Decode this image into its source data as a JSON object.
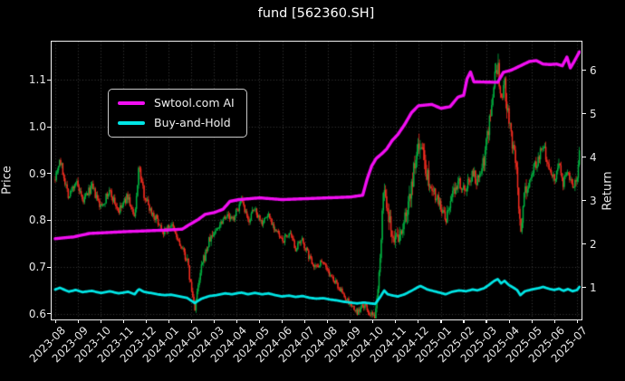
{
  "title": "fund [562360.SH]",
  "chart_data": {
    "type": "candlestick",
    "title": "fund [562360.SH]",
    "background_color": "#000000",
    "text_color": "#e8e8e8",
    "grid": {
      "show": true,
      "style": "dotted",
      "color": "#555555"
    },
    "x_axis": {
      "tick_unit": "month",
      "labels": [
        "2023-08",
        "2023-09",
        "2023-10",
        "2023-11",
        "2023-12",
        "2024-01",
        "2024-02",
        "2024-03",
        "2024-04",
        "2024-05",
        "2024-06",
        "2024-07",
        "2024-08",
        "2024-09",
        "2024-10",
        "2024-11",
        "2024-12",
        "2025-01",
        "2025-02",
        "2025-03",
        "2025-04",
        "2025-05",
        "2025-06",
        "2025-07"
      ]
    },
    "left_axis": {
      "label": "Price",
      "ticks": [
        1.1,
        1.0,
        0.9,
        0.8,
        0.7,
        0.6
      ],
      "tick_labels": [
        "1.1",
        "1.0",
        "0.9",
        "0.8",
        "0.7",
        "0.6"
      ],
      "range": [
        0.59,
        1.18
      ]
    },
    "right_axis": {
      "label": "Return",
      "ticks": [
        6,
        5,
        4,
        3,
        2,
        1
      ],
      "tick_labels": [
        "6",
        "5",
        "4",
        "3",
        "2",
        "1"
      ],
      "range": [
        0.28,
        6.68
      ]
    },
    "legend": {
      "position": "upper-left",
      "entries": [
        {
          "label": "Swtool.com AI",
          "color": "#f20ef2"
        },
        {
          "label": "Buy-and-Hold",
          "color": "#00e5e5"
        }
      ]
    },
    "series": [
      {
        "name": "Swtool.com AI",
        "type": "line",
        "axis": "right",
        "color": "#f20ef2",
        "x_unit": "months_from_2023-08",
        "points": [
          [
            0,
            2.12
          ],
          [
            0.8,
            2.16
          ],
          [
            1.5,
            2.24
          ],
          [
            3.0,
            2.28
          ],
          [
            4.0,
            2.3
          ],
          [
            5.0,
            2.32
          ],
          [
            5.6,
            2.34
          ],
          [
            5.9,
            2.44
          ],
          [
            6.3,
            2.56
          ],
          [
            6.6,
            2.68
          ],
          [
            7.0,
            2.72
          ],
          [
            7.4,
            2.8
          ],
          [
            7.7,
            2.98
          ],
          [
            8.1,
            3.02
          ],
          [
            9.0,
            3.06
          ],
          [
            10.0,
            3.02
          ],
          [
            11.0,
            3.04
          ],
          [
            12.0,
            3.06
          ],
          [
            13.0,
            3.08
          ],
          [
            13.55,
            3.12
          ],
          [
            13.75,
            3.5
          ],
          [
            13.95,
            3.8
          ],
          [
            14.15,
            3.97
          ],
          [
            14.4,
            4.08
          ],
          [
            14.6,
            4.18
          ],
          [
            14.85,
            4.38
          ],
          [
            15.1,
            4.52
          ],
          [
            15.4,
            4.75
          ],
          [
            15.7,
            5.02
          ],
          [
            16.0,
            5.18
          ],
          [
            16.6,
            5.21
          ],
          [
            17.0,
            5.12
          ],
          [
            17.4,
            5.16
          ],
          [
            17.75,
            5.38
          ],
          [
            18.0,
            5.42
          ],
          [
            18.15,
            5.8
          ],
          [
            18.3,
            5.96
          ],
          [
            18.45,
            5.73
          ],
          [
            19.5,
            5.72
          ],
          [
            19.75,
            5.95
          ],
          [
            20.1,
            6.0
          ],
          [
            20.5,
            6.1
          ],
          [
            20.9,
            6.2
          ],
          [
            21.2,
            6.22
          ],
          [
            21.5,
            6.14
          ],
          [
            21.8,
            6.13
          ],
          [
            22.1,
            6.14
          ],
          [
            22.35,
            6.1
          ],
          [
            22.55,
            6.3
          ],
          [
            22.7,
            6.05
          ],
          [
            22.85,
            6.18
          ],
          [
            23.1,
            6.42
          ]
        ]
      },
      {
        "name": "Buy-and-Hold",
        "type": "line",
        "axis": "right",
        "color": "#00e5e5",
        "x_unit": "months_from_2023-08",
        "points": [
          [
            0,
            0.95
          ],
          [
            0.2,
            0.99
          ],
          [
            0.6,
            0.9
          ],
          [
            0.9,
            0.94
          ],
          [
            1.2,
            0.89
          ],
          [
            1.6,
            0.92
          ],
          [
            2.0,
            0.87
          ],
          [
            2.4,
            0.91
          ],
          [
            2.8,
            0.86
          ],
          [
            3.2,
            0.9
          ],
          [
            3.5,
            0.84
          ],
          [
            3.68,
            0.96
          ],
          [
            3.9,
            0.9
          ],
          [
            4.2,
            0.87
          ],
          [
            4.5,
            0.84
          ],
          [
            4.8,
            0.82
          ],
          [
            5.1,
            0.83
          ],
          [
            5.5,
            0.79
          ],
          [
            5.8,
            0.76
          ],
          [
            6.0,
            0.69
          ],
          [
            6.15,
            0.64
          ],
          [
            6.45,
            0.74
          ],
          [
            6.8,
            0.8
          ],
          [
            7.1,
            0.82
          ],
          [
            7.5,
            0.86
          ],
          [
            7.8,
            0.84
          ],
          [
            8.2,
            0.88
          ],
          [
            8.5,
            0.84
          ],
          [
            8.8,
            0.87
          ],
          [
            9.1,
            0.84
          ],
          [
            9.4,
            0.86
          ],
          [
            9.7,
            0.82
          ],
          [
            10.0,
            0.79
          ],
          [
            10.3,
            0.81
          ],
          [
            10.6,
            0.78
          ],
          [
            10.9,
            0.8
          ],
          [
            11.2,
            0.76
          ],
          [
            11.5,
            0.74
          ],
          [
            11.8,
            0.75
          ],
          [
            12.1,
            0.72
          ],
          [
            12.4,
            0.7
          ],
          [
            12.7,
            0.67
          ],
          [
            13.0,
            0.65
          ],
          [
            13.3,
            0.63
          ],
          [
            13.6,
            0.65
          ],
          [
            13.9,
            0.63
          ],
          [
            14.1,
            0.62
          ],
          [
            14.3,
            0.76
          ],
          [
            14.5,
            0.93
          ],
          [
            14.65,
            0.84
          ],
          [
            14.9,
            0.81
          ],
          [
            15.1,
            0.79
          ],
          [
            15.4,
            0.84
          ],
          [
            15.7,
            0.92
          ],
          [
            16.0,
            1.01
          ],
          [
            16.1,
            1.03
          ],
          [
            16.4,
            0.95
          ],
          [
            16.7,
            0.91
          ],
          [
            17.0,
            0.87
          ],
          [
            17.2,
            0.84
          ],
          [
            17.5,
            0.9
          ],
          [
            17.8,
            0.93
          ],
          [
            18.1,
            0.91
          ],
          [
            18.4,
            0.95
          ],
          [
            18.6,
            0.93
          ],
          [
            18.9,
            0.98
          ],
          [
            19.1,
            1.05
          ],
          [
            19.35,
            1.15
          ],
          [
            19.5,
            1.19
          ],
          [
            19.65,
            1.09
          ],
          [
            19.8,
            1.15
          ],
          [
            20.0,
            1.05
          ],
          [
            20.2,
            0.99
          ],
          [
            20.35,
            0.94
          ],
          [
            20.5,
            0.82
          ],
          [
            20.7,
            0.91
          ],
          [
            21.0,
            0.95
          ],
          [
            21.3,
            0.98
          ],
          [
            21.5,
            1.01
          ],
          [
            21.8,
            0.96
          ],
          [
            22.0,
            0.94
          ],
          [
            22.2,
            0.97
          ],
          [
            22.4,
            0.92
          ],
          [
            22.6,
            0.96
          ],
          [
            22.8,
            0.91
          ],
          [
            23.0,
            0.94
          ],
          [
            23.1,
            1.01
          ]
        ]
      },
      {
        "name": "fund price",
        "type": "candlestick",
        "axis": "left",
        "up_color": "#00b140",
        "down_color": "#f22c20",
        "x_unit": "months_from_2023-08",
        "close_path": [
          [
            0,
            0.895
          ],
          [
            0.2,
            0.93
          ],
          [
            0.6,
            0.85
          ],
          [
            0.9,
            0.885
          ],
          [
            1.2,
            0.838
          ],
          [
            1.6,
            0.872
          ],
          [
            2.0,
            0.828
          ],
          [
            2.4,
            0.862
          ],
          [
            2.8,
            0.818
          ],
          [
            3.2,
            0.852
          ],
          [
            3.5,
            0.8
          ],
          [
            3.68,
            0.915
          ],
          [
            3.9,
            0.858
          ],
          [
            4.2,
            0.822
          ],
          [
            4.5,
            0.8
          ],
          [
            4.8,
            0.775
          ],
          [
            5.1,
            0.792
          ],
          [
            5.5,
            0.746
          ],
          [
            5.8,
            0.718
          ],
          [
            6.0,
            0.652
          ],
          [
            6.15,
            0.612
          ],
          [
            6.45,
            0.7
          ],
          [
            6.8,
            0.758
          ],
          [
            7.1,
            0.78
          ],
          [
            7.5,
            0.812
          ],
          [
            7.8,
            0.8
          ],
          [
            8.2,
            0.84
          ],
          [
            8.5,
            0.798
          ],
          [
            8.8,
            0.825
          ],
          [
            9.1,
            0.796
          ],
          [
            9.4,
            0.812
          ],
          [
            9.7,
            0.78
          ],
          [
            10.0,
            0.754
          ],
          [
            10.3,
            0.772
          ],
          [
            10.6,
            0.74
          ],
          [
            10.9,
            0.756
          ],
          [
            11.2,
            0.72
          ],
          [
            11.5,
            0.7
          ],
          [
            11.8,
            0.716
          ],
          [
            12.1,
            0.682
          ],
          [
            12.4,
            0.664
          ],
          [
            12.7,
            0.64
          ],
          [
            13.0,
            0.62
          ],
          [
            13.3,
            0.602
          ],
          [
            13.6,
            0.618
          ],
          [
            13.9,
            0.598
          ],
          [
            14.1,
            0.59
          ],
          [
            14.3,
            0.72
          ],
          [
            14.5,
            0.88
          ],
          [
            14.65,
            0.8
          ],
          [
            14.9,
            0.77
          ],
          [
            15.1,
            0.755
          ],
          [
            15.4,
            0.8
          ],
          [
            15.7,
            0.875
          ],
          [
            16.0,
            0.955
          ],
          [
            16.1,
            0.975
          ],
          [
            16.4,
            0.9
          ],
          [
            16.7,
            0.862
          ],
          [
            17.0,
            0.83
          ],
          [
            17.2,
            0.795
          ],
          [
            17.5,
            0.855
          ],
          [
            17.8,
            0.885
          ],
          [
            18.1,
            0.866
          ],
          [
            18.4,
            0.905
          ],
          [
            18.6,
            0.882
          ],
          [
            18.9,
            0.935
          ],
          [
            19.1,
            1.0
          ],
          [
            19.35,
            1.09
          ],
          [
            19.5,
            1.13
          ],
          [
            19.65,
            1.04
          ],
          [
            19.8,
            1.09
          ],
          [
            20.0,
            1.0
          ],
          [
            20.2,
            0.945
          ],
          [
            20.35,
            0.89
          ],
          [
            20.5,
            0.775
          ],
          [
            20.7,
            0.862
          ],
          [
            21.0,
            0.9
          ],
          [
            21.3,
            0.935
          ],
          [
            21.5,
            0.958
          ],
          [
            21.8,
            0.915
          ],
          [
            22.0,
            0.89
          ],
          [
            22.2,
            0.92
          ],
          [
            22.4,
            0.878
          ],
          [
            22.6,
            0.908
          ],
          [
            22.8,
            0.868
          ],
          [
            23.0,
            0.895
          ],
          [
            23.1,
            0.958
          ]
        ]
      }
    ]
  }
}
